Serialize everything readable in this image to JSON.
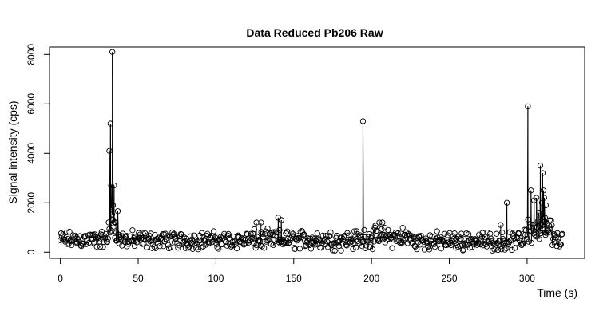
{
  "chart_data": {
    "type": "scatter",
    "title": "Data Reduced Pb206 Raw",
    "xlabel": "Time (s)",
    "ylabel": "Signal intensity (cps)",
    "xlim": [
      -7,
      337
    ],
    "ylim": [
      -250,
      8300
    ],
    "x_ticks": [
      0,
      50,
      100,
      150,
      200,
      250,
      300
    ],
    "y_ticks": [
      0,
      2000,
      4000,
      6000,
      8000
    ],
    "x_tick_labels": [
      "0",
      "50",
      "100",
      "150",
      "200",
      "250",
      "300"
    ],
    "y_tick_labels": [
      "0",
      "2000",
      "4000",
      "6000",
      "8000"
    ],
    "grid": false,
    "marker": "open-circle",
    "point_color": "#000000",
    "baseline": {
      "x_start": 0,
      "x_end": 323,
      "step": 0.45,
      "regions": [
        {
          "from": 0,
          "to": 31,
          "mean": 500,
          "spread": 260
        },
        {
          "from": 31,
          "to": 37,
          "mean": 1200,
          "spread": 600
        },
        {
          "from": 37,
          "to": 48,
          "mean": 500,
          "spread": 280
        },
        {
          "from": 48,
          "to": 120,
          "mean": 480,
          "spread": 260
        },
        {
          "from": 120,
          "to": 195,
          "mean": 500,
          "spread": 300
        },
        {
          "from": 195,
          "to": 225,
          "mean": 600,
          "spread": 320
        },
        {
          "from": 225,
          "to": 298,
          "mean": 450,
          "spread": 270
        },
        {
          "from": 298,
          "to": 316,
          "mean": 900,
          "spread": 450
        },
        {
          "from": 316,
          "to": 323,
          "mean": 500,
          "spread": 250
        }
      ]
    },
    "highlights": [
      {
        "x": 31.5,
        "y": 4100
      },
      {
        "x": 32.2,
        "y": 5200
      },
      {
        "x": 32.6,
        "y": 2700
      },
      {
        "x": 33.0,
        "y": 1900
      },
      {
        "x": 33.4,
        "y": 8100
      },
      {
        "x": 33.8,
        "y": 1900
      },
      {
        "x": 34.5,
        "y": 2700
      },
      {
        "x": 35.0,
        "y": 1200
      },
      {
        "x": 35.5,
        "y": 850
      },
      {
        "x": 36.0,
        "y": 800
      },
      {
        "x": 38.0,
        "y": 700
      },
      {
        "x": 40.0,
        "y": 650
      },
      {
        "x": 126,
        "y": 1200
      },
      {
        "x": 129,
        "y": 1200
      },
      {
        "x": 140,
        "y": 1400
      },
      {
        "x": 142,
        "y": 1300
      },
      {
        "x": 194.5,
        "y": 5300
      },
      {
        "x": 205,
        "y": 1200
      },
      {
        "x": 207,
        "y": 1200
      },
      {
        "x": 287,
        "y": 2000
      },
      {
        "x": 283,
        "y": 1100
      },
      {
        "x": 300.5,
        "y": 5900
      },
      {
        "x": 302.5,
        "y": 2500
      },
      {
        "x": 304.5,
        "y": 2100
      },
      {
        "x": 306,
        "y": 2200
      },
      {
        "x": 307.5,
        "y": 1600
      },
      {
        "x": 308.5,
        "y": 3500
      },
      {
        "x": 309.5,
        "y": 2000
      },
      {
        "x": 310.0,
        "y": 3200
      },
      {
        "x": 310.5,
        "y": 2500
      },
      {
        "x": 311.0,
        "y": 2200
      },
      {
        "x": 311.5,
        "y": 1400
      },
      {
        "x": 312.0,
        "y": 1900
      },
      {
        "x": 313,
        "y": 900
      },
      {
        "x": 314,
        "y": 800
      }
    ]
  }
}
